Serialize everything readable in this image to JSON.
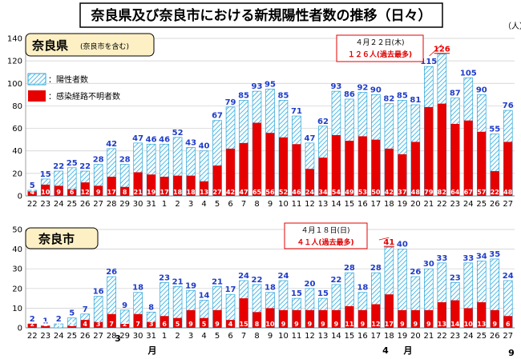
{
  "title": "奈良県及び奈良市における新規陽性者数の推移（日々）",
  "unit": "（人）",
  "legend": {
    "positive": "：陽性者数",
    "unknown": "：感染経路不明者数"
  },
  "colors": {
    "positive_stroke": "#2aa3d6",
    "unknown": "#e60000",
    "total_label": "#1e3cc8",
    "max_label": "#e60000"
  },
  "x_labels": [
    "22",
    "23",
    "24",
    "25",
    "26",
    "27",
    "28",
    "29",
    "30",
    "31",
    "1",
    "2",
    "3",
    "4",
    "5",
    "6",
    "7",
    "8",
    "9",
    "10",
    "11",
    "12",
    "13",
    "14",
    "15",
    "16",
    "17",
    "18",
    "19",
    "20",
    "21",
    "22",
    "23",
    "24",
    "25",
    "26",
    "27"
  ],
  "month_labels": {
    "march_num": "3",
    "march_unit": "月",
    "april_num": "4",
    "april_unit": "月",
    "may_num": "9"
  },
  "chart_data": [
    {
      "type": "bar",
      "region": "奈良県",
      "region_note": "(奈良市を含む)",
      "ylim": [
        0,
        140
      ],
      "yticks": [
        "0",
        "20",
        "40",
        "60",
        "80",
        "100",
        "120",
        "140"
      ],
      "series": [
        {
          "name": "陽性者数",
          "values": [
            5,
            15,
            22,
            25,
            22,
            28,
            42,
            28,
            47,
            46,
            46,
            52,
            43,
            40,
            67,
            79,
            85,
            93,
            95,
            85,
            71,
            47,
            62,
            93,
            86,
            92,
            90,
            82,
            85,
            81,
            115,
            126,
            87,
            105,
            90,
            55,
            76
          ]
        },
        {
          "name": "感染経路不明者数",
          "values": [
            4,
            10,
            9,
            6,
            12,
            9,
            17,
            8,
            21,
            19,
            17,
            18,
            18,
            13,
            27,
            42,
            47,
            65,
            56,
            52,
            46,
            24,
            34,
            54,
            49,
            53,
            50,
            42,
            37,
            48,
            79,
            82,
            64,
            67,
            57,
            22,
            48
          ]
        }
      ],
      "callout": {
        "line1": "４月２２日(木)",
        "line2": "１２６人(過去最多)",
        "max_index": 31
      }
    },
    {
      "type": "bar",
      "region": "奈良市",
      "ylim": [
        0,
        50
      ],
      "yticks": [
        "0",
        "10",
        "20",
        "30",
        "40",
        "50"
      ],
      "series": [
        {
          "name": "陽性者数",
          "values": [
            2,
            1,
            2,
            5,
            7,
            16,
            26,
            9,
            18,
            8,
            23,
            21,
            19,
            14,
            21,
            17,
            24,
            22,
            18,
            24,
            15,
            20,
            15,
            22,
            28,
            18,
            28,
            41,
            40,
            26,
            30,
            33,
            23,
            33,
            34,
            35,
            24
          ]
        },
        {
          "name": "感染経路不明者数",
          "values": [
            2,
            1,
            0,
            1,
            4,
            3,
            7,
            2,
            7,
            3,
            6,
            5,
            9,
            5,
            9,
            4,
            15,
            8,
            10,
            9,
            9,
            9,
            9,
            9,
            11,
            9,
            12,
            17,
            9,
            9,
            9,
            13,
            14,
            10,
            13,
            9,
            6
          ]
        }
      ],
      "callout": {
        "line1": "４月１８日(日)",
        "line2": "４１人(過去最多)",
        "max_index": 27
      }
    }
  ]
}
